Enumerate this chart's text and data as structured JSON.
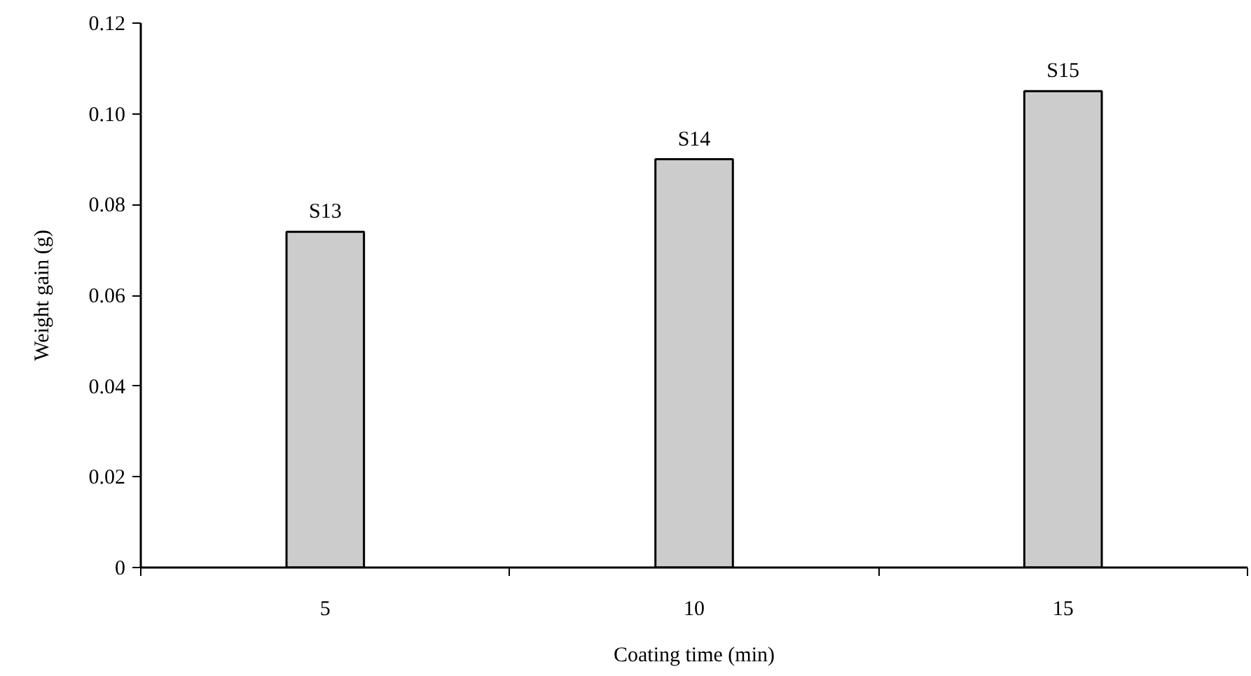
{
  "chart_data": {
    "type": "bar",
    "xlabel": "Coating time (min)",
    "ylabel": "Weight gain (g)",
    "categories": [
      "5",
      "10",
      "15"
    ],
    "values": [
      0.074,
      0.09,
      0.105
    ],
    "color": "#cccccc",
    "ylim": [
      0,
      0.12
    ],
    "yticks": [
      0,
      {
        "value": 0.02,
        "label": "0.02"
      },
      {
        "value": 0.04,
        "label": "0.04"
      },
      {
        "value": 0.06,
        "label": "0.06"
      },
      {
        "value": 0.08,
        "label": "0.08"
      },
      {
        "value": 0.1,
        "label": "0.10"
      },
      {
        "value": 0.12,
        "label": "0.12"
      }
    ],
    "grid": false,
    "annotations": [
      {
        "text": "S13",
        "x": "5",
        "y": 0.074
      },
      {
        "text": "S14",
        "x": "10",
        "y": 0.09
      },
      {
        "text": "S15",
        "x": "15",
        "y": 0.105
      }
    ]
  }
}
